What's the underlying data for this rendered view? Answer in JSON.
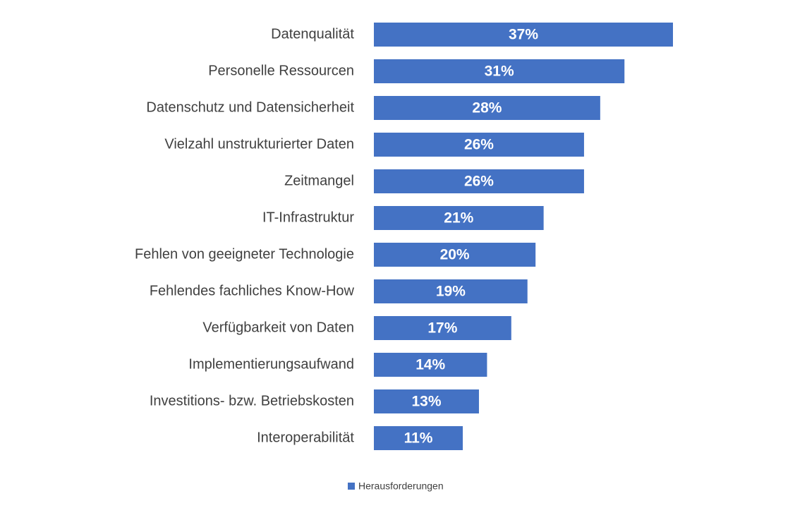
{
  "chart_data": {
    "type": "bar",
    "orientation": "horizontal",
    "categories": [
      "Datenqualität",
      "Personelle Ressourcen",
      "Datenschutz und Datensicherheit",
      "Vielzahl unstrukturierter Daten",
      "Zeitmangel",
      "IT-Infrastruktur",
      "Fehlen von geeigneter Technologie",
      "Fehlendes fachliches Know-How",
      "Verfügbarkeit von Daten",
      "Implementierungsaufwand",
      "Investitions- bzw. Betriebskosten",
      "Interoperabilität"
    ],
    "series": [
      {
        "name": "Herausforderungen",
        "color": "#4472c4",
        "values": [
          37,
          31,
          28,
          26,
          26,
          21,
          20,
          19,
          17,
          14,
          13,
          11
        ],
        "value_labels": [
          "37%",
          "31%",
          "28%",
          "26%",
          "26%",
          "21%",
          "20%",
          "19%",
          "17%",
          "14%",
          "13%",
          "11%"
        ]
      }
    ],
    "legend": "bottom"
  }
}
